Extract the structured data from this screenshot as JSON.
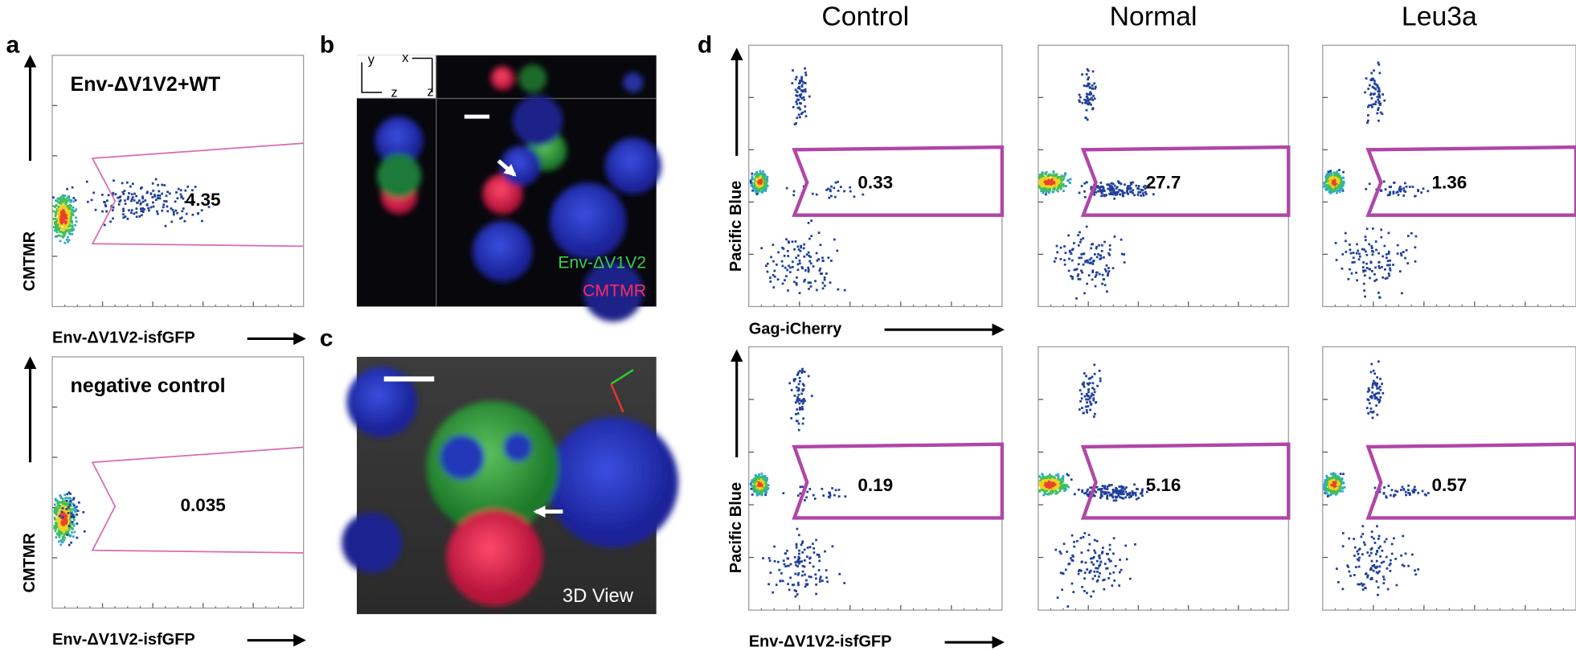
{
  "panels": {
    "a": {
      "label": "a",
      "plots": [
        {
          "title": "Env-ΔV1V2+WT",
          "gate_value": "4.35",
          "y_label": "CMTMR",
          "x_label": "Env-ΔV1V2-isfGFP"
        },
        {
          "title": "negative control",
          "gate_value": "0.035",
          "y_label": "CMTMR",
          "x_label": "Env-ΔV1V2-isfGFP"
        }
      ]
    },
    "b": {
      "label": "b",
      "axes": [
        "y",
        "x",
        "z",
        "z"
      ],
      "legend": [
        "Env-ΔV1V2",
        "CMTMR"
      ]
    },
    "c": {
      "label": "c",
      "caption": "3D View"
    },
    "d": {
      "label": "d",
      "columns": [
        "Control",
        "Normal",
        "Leu3a"
      ],
      "rows": [
        {
          "y_label": "Pacific Blue",
          "x_label": "Gag-iCherry",
          "gate_values": [
            "0.33",
            "27.7",
            "1.36"
          ]
        },
        {
          "y_label": "Pacific Blue",
          "x_label": "Env-ΔV1V2-isfGFP",
          "gate_values": [
            "0.19",
            "5.16",
            "0.57"
          ]
        }
      ]
    }
  }
}
